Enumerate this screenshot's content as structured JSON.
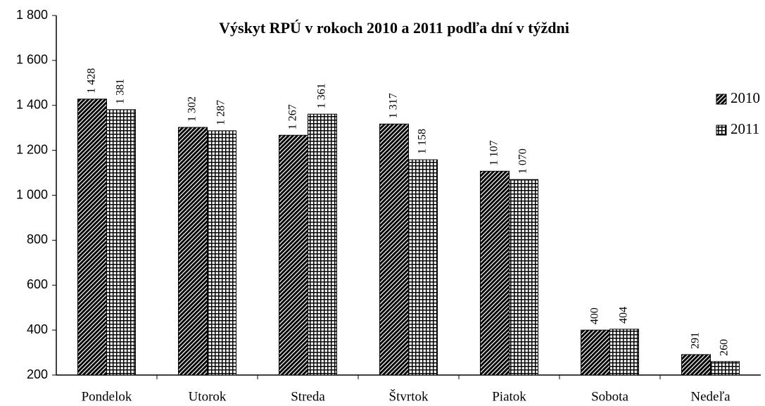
{
  "chart_data": {
    "type": "bar",
    "title": "Výskyt RPÚ v rokoch 2010 a 2011 podľa dní v týždni",
    "categories": [
      "Pondelok",
      "Utorok",
      "Streda",
      "Štvrtok",
      "Piatok",
      "Sobota",
      "Nedeľa"
    ],
    "series": [
      {
        "name": "2010",
        "color": "#000000",
        "pattern": "diagonal",
        "values": [
          1428,
          1302,
          1267,
          1317,
          1107,
          400,
          291
        ],
        "value_labels": [
          "1 428",
          "1 302",
          "1 267",
          "1 317",
          "1 107",
          "400",
          "291"
        ]
      },
      {
        "name": "2011",
        "color": "#000000",
        "pattern": "grid",
        "values": [
          1381,
          1287,
          1361,
          1158,
          1070,
          404,
          260
        ],
        "value_labels": [
          "1 381",
          "1 287",
          "1 361",
          "1 158",
          "1 070",
          "404",
          "260"
        ]
      }
    ],
    "ylim": [
      200,
      1800
    ],
    "yticks": [
      200,
      400,
      600,
      800,
      {
        "value": 1000,
        "label": "1 000"
      },
      {
        "value": 1200,
        "label": "1 200"
      },
      {
        "value": 1400,
        "label": "1 400"
      },
      {
        "value": 1600,
        "label": "1 600"
      },
      {
        "value": 1800,
        "label": "1 800"
      }
    ],
    "legend": "upper right",
    "grid": false
  }
}
